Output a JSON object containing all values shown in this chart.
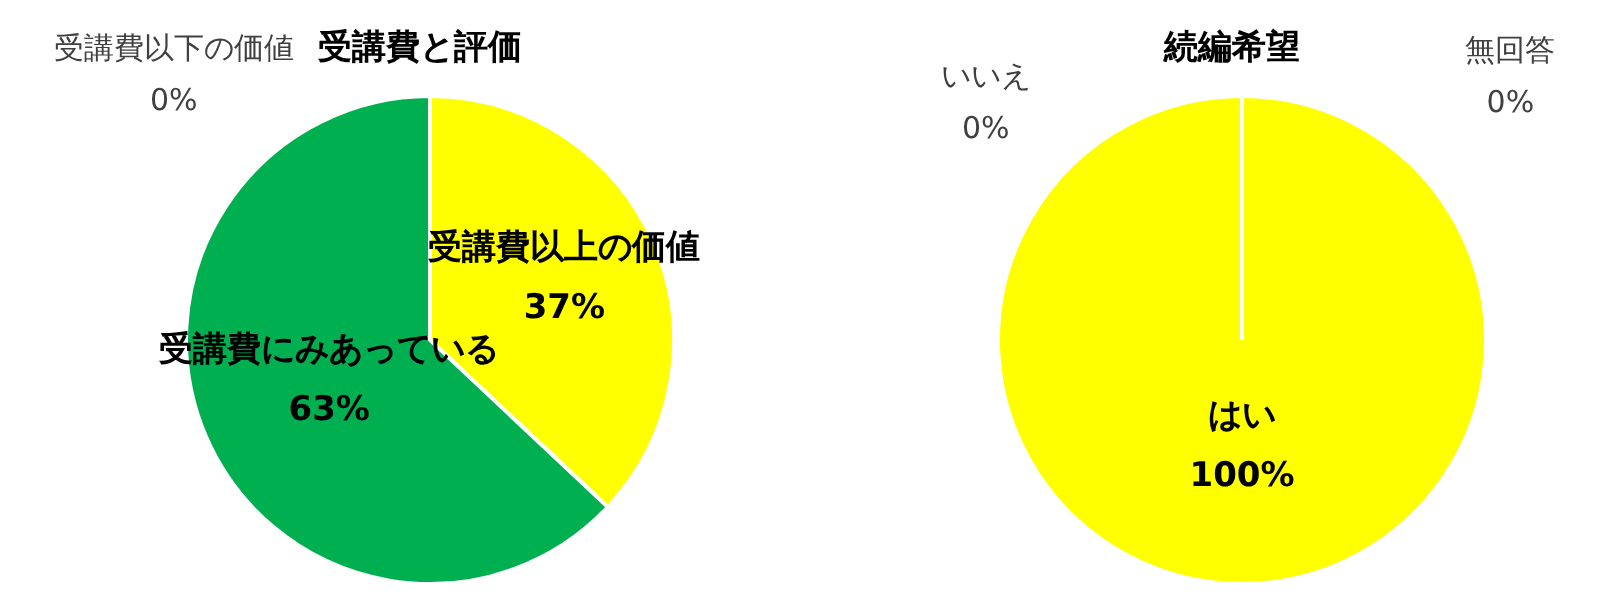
{
  "chart_data": [
    {
      "type": "pie",
      "title": "受講費と評価",
      "categories": [
        "受講費以上の価値",
        "受講費にみあっている",
        "受講費以下の価値"
      ],
      "values": [
        37,
        63,
        0
      ],
      "colors": [
        "#ffff00",
        "#00b050",
        "#a5a5a5"
      ],
      "value_labels": [
        "37%",
        "63%",
        "0%"
      ]
    },
    {
      "type": "pie",
      "title": "続編希望",
      "categories": [
        "はい",
        "いいえ",
        "無回答"
      ],
      "values": [
        100,
        0,
        0
      ],
      "colors": [
        "#ffff00",
        "#00b050",
        "#a5a5a5"
      ],
      "value_labels": [
        "100%",
        "0%",
        "0%"
      ]
    }
  ]
}
